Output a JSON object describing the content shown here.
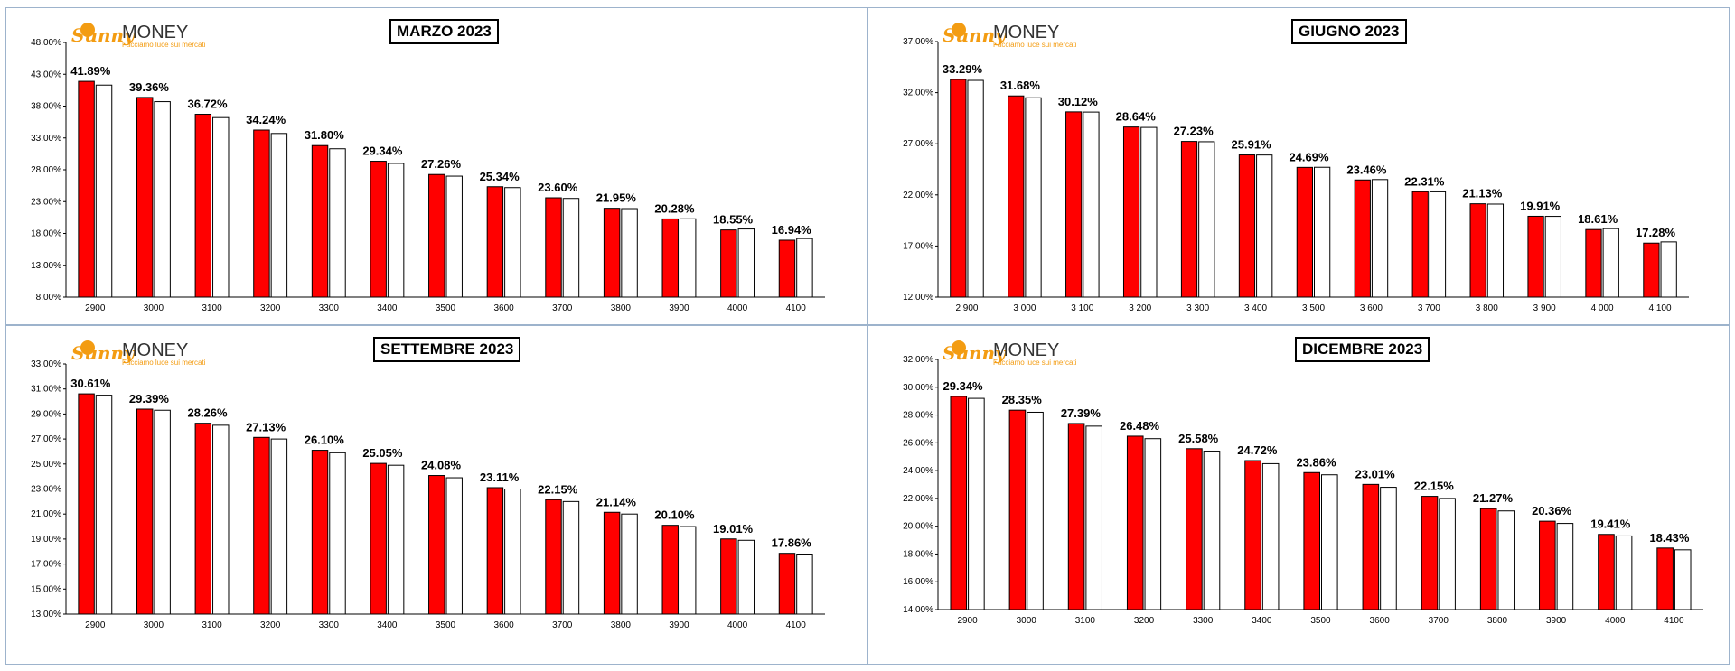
{
  "logo": {
    "brand_script": "Sunny",
    "brand_word": "MONEY",
    "tagline": "Facciamo luce sui mercati"
  },
  "colors": {
    "primary_bar": "#ff0000",
    "secondary_bar": "#ffffff",
    "frame": "#9db3cc",
    "logo_orange": "#f39c12"
  },
  "chart_data": [
    {
      "type": "bar",
      "title": "MARZO 2023",
      "categories": [
        "2900",
        "3000",
        "3100",
        "3200",
        "3300",
        "3400",
        "3500",
        "3600",
        "3700",
        "3800",
        "3900",
        "4000",
        "4100"
      ],
      "series": [
        {
          "values": [
            41.89,
            39.36,
            36.72,
            34.24,
            31.8,
            29.34,
            27.26,
            25.34,
            23.6,
            21.95,
            20.28,
            18.55,
            16.94
          ],
          "labels": [
            "41.89%",
            "39.36%",
            "36.72%",
            "34.24%",
            "31.80%",
            "29.34%",
            "27.26%",
            "25.34%",
            "23.60%",
            "21.95%",
            "20.28%",
            "18.55%",
            "16.94%"
          ]
        },
        {
          "values": [
            41.3,
            38.7,
            36.2,
            33.7,
            31.3,
            29.0,
            27.0,
            25.2,
            23.5,
            21.9,
            20.3,
            18.7,
            17.2
          ]
        }
      ],
      "yticks": [
        "8.00%",
        "13.00%",
        "18.00%",
        "23.00%",
        "28.00%",
        "33.00%",
        "38.00%",
        "43.00%",
        "48.00%"
      ],
      "ylim": [
        8,
        48
      ]
    },
    {
      "type": "bar",
      "title": "GIUGNO 2023",
      "categories": [
        "2 900",
        "3 000",
        "3 100",
        "3 200",
        "3 300",
        "3 400",
        "3 500",
        "3 600",
        "3 700",
        "3 800",
        "3 900",
        "4 000",
        "4 100"
      ],
      "series": [
        {
          "values": [
            33.29,
            31.68,
            30.12,
            28.64,
            27.23,
            25.91,
            24.69,
            23.46,
            22.31,
            21.13,
            19.91,
            18.61,
            17.28
          ],
          "labels": [
            "33.29%",
            "31.68%",
            "30.12%",
            "28.64%",
            "27.23%",
            "25.91%",
            "24.69%",
            "23.46%",
            "22.31%",
            "21.13%",
            "19.91%",
            "18.61%",
            "17.28%"
          ]
        },
        {
          "values": [
            33.2,
            31.5,
            30.1,
            28.6,
            27.2,
            25.9,
            24.7,
            23.5,
            22.3,
            21.1,
            19.9,
            18.7,
            17.4
          ]
        }
      ],
      "yticks": [
        "12.00%",
        "17.00%",
        "22.00%",
        "27.00%",
        "32.00%",
        "37.00%"
      ],
      "ylim": [
        12,
        37
      ]
    },
    {
      "type": "bar",
      "title": "SETTEMBRE 2023",
      "categories": [
        "2900",
        "3000",
        "3100",
        "3200",
        "3300",
        "3400",
        "3500",
        "3600",
        "3700",
        "3800",
        "3900",
        "4000",
        "4100"
      ],
      "series": [
        {
          "values": [
            30.61,
            29.39,
            28.26,
            27.13,
            26.1,
            25.05,
            24.08,
            23.11,
            22.15,
            21.14,
            20.1,
            19.01,
            17.86
          ],
          "labels": [
            "30.61%",
            "29.39%",
            "28.26%",
            "27.13%",
            "26.10%",
            "25.05%",
            "24.08%",
            "23.11%",
            "22.15%",
            "21.14%",
            "20.10%",
            "19.01%",
            "17.86%"
          ]
        },
        {
          "values": [
            30.5,
            29.3,
            28.1,
            27.0,
            25.9,
            24.9,
            23.9,
            23.0,
            22.0,
            21.0,
            20.0,
            18.9,
            17.8
          ]
        }
      ],
      "yticks": [
        "13.00%",
        "15.00%",
        "17.00%",
        "19.00%",
        "21.00%",
        "23.00%",
        "25.00%",
        "27.00%",
        "29.00%",
        "31.00%",
        "33.00%"
      ],
      "ylim": [
        13,
        33
      ]
    },
    {
      "type": "bar",
      "title": "DICEMBRE 2023",
      "categories": [
        "2900",
        "3000",
        "3100",
        "3200",
        "3300",
        "3400",
        "3500",
        "3600",
        "3700",
        "3800",
        "3900",
        "4000",
        "4100"
      ],
      "series": [
        {
          "values": [
            29.34,
            28.35,
            27.39,
            26.48,
            25.58,
            24.72,
            23.86,
            23.01,
            22.15,
            21.27,
            20.36,
            19.41,
            18.43
          ],
          "labels": [
            "29.34%",
            "28.35%",
            "27.39%",
            "26.48%",
            "25.58%",
            "24.72%",
            "23.86%",
            "23.01%",
            "22.15%",
            "21.27%",
            "20.36%",
            "19.41%",
            "18.43%"
          ]
        },
        {
          "values": [
            29.2,
            28.2,
            27.2,
            26.3,
            25.4,
            24.5,
            23.7,
            22.8,
            22.0,
            21.1,
            20.2,
            19.3,
            18.3
          ]
        }
      ],
      "yticks": [
        "14.00%",
        "16.00%",
        "18.00%",
        "20.00%",
        "22.00%",
        "24.00%",
        "26.00%",
        "28.00%",
        "30.00%",
        "32.00%"
      ],
      "ylim": [
        14,
        32
      ]
    }
  ]
}
